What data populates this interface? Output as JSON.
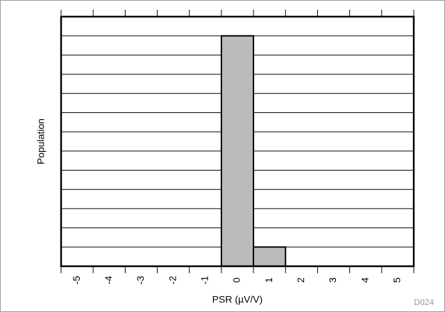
{
  "chart_data": {
    "type": "bar",
    "x_label": "PSR (µV/V)",
    "y_label": "Population",
    "figure_id": "D024",
    "categories": [
      "-5",
      "-4",
      "-3",
      "-2",
      "-1",
      "0",
      "1",
      "2",
      "3",
      "4",
      "5"
    ],
    "values": [
      0,
      0,
      0,
      0,
      0,
      12,
      1,
      0,
      0,
      0,
      0
    ],
    "color": "#bbbbbb",
    "ylim": [
      0,
      13
    ],
    "yticks": [
      0,
      1,
      2,
      3,
      4,
      5,
      6,
      7,
      8,
      9,
      10,
      11,
      12,
      13
    ],
    "grid": true
  }
}
